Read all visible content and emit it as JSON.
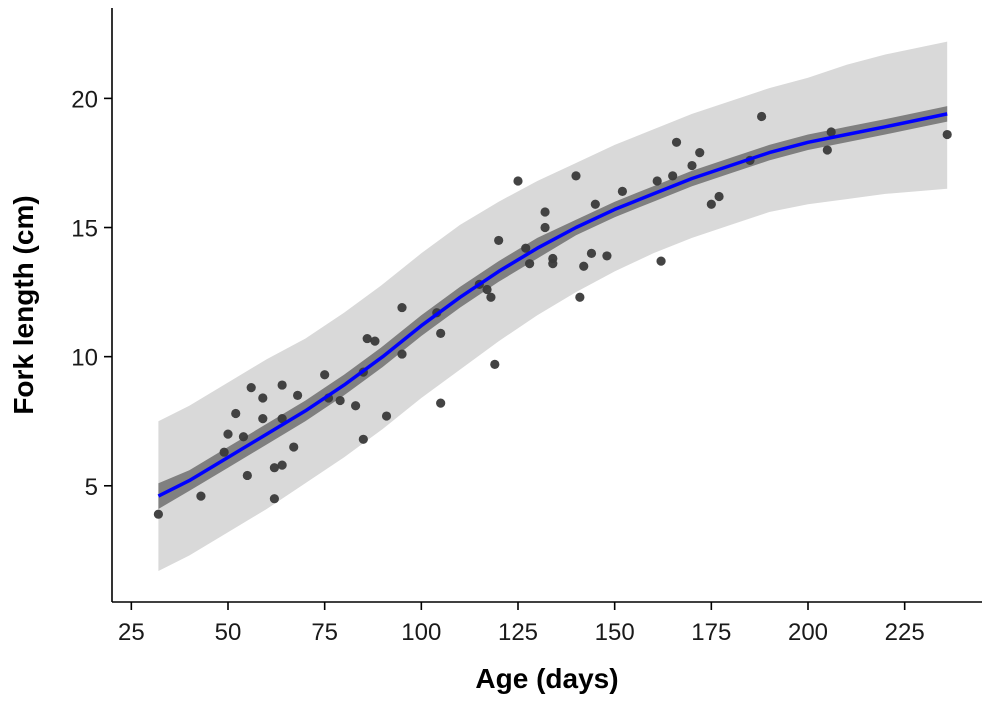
{
  "chart_data": {
    "type": "scatter",
    "title": "",
    "xlabel": "Age (days)",
    "ylabel": "Fork length (cm)",
    "xlim": [
      20,
      245
    ],
    "ylim": [
      0.5,
      23.5
    ],
    "x_ticks": [
      25,
      50,
      75,
      100,
      125,
      150,
      175,
      200,
      225
    ],
    "y_ticks": [
      5,
      10,
      15,
      20
    ],
    "grid": false,
    "legend": "none",
    "colors": {
      "points": "#3a3a3a",
      "fit_line": "#0000ff",
      "confidence_band": "#808080",
      "prediction_band": "#d9d9d9"
    },
    "points": [
      {
        "x": 32,
        "y": 3.9
      },
      {
        "x": 43,
        "y": 4.6
      },
      {
        "x": 49,
        "y": 6.3
      },
      {
        "x": 50,
        "y": 7.0
      },
      {
        "x": 52,
        "y": 7.8
      },
      {
        "x": 54,
        "y": 6.9
      },
      {
        "x": 55,
        "y": 5.4
      },
      {
        "x": 56,
        "y": 8.8
      },
      {
        "x": 59,
        "y": 8.4
      },
      {
        "x": 59,
        "y": 7.6
      },
      {
        "x": 62,
        "y": 5.7
      },
      {
        "x": 62,
        "y": 4.5
      },
      {
        "x": 64,
        "y": 8.9
      },
      {
        "x": 64,
        "y": 7.6
      },
      {
        "x": 64,
        "y": 5.8
      },
      {
        "x": 67,
        "y": 6.5
      },
      {
        "x": 68,
        "y": 8.5
      },
      {
        "x": 75,
        "y": 9.3
      },
      {
        "x": 76,
        "y": 8.4
      },
      {
        "x": 79,
        "y": 8.3
      },
      {
        "x": 83,
        "y": 8.1
      },
      {
        "x": 85,
        "y": 6.8
      },
      {
        "x": 85,
        "y": 9.4
      },
      {
        "x": 86,
        "y": 10.7
      },
      {
        "x": 88,
        "y": 10.6
      },
      {
        "x": 91,
        "y": 7.7
      },
      {
        "x": 95,
        "y": 11.9
      },
      {
        "x": 95,
        "y": 10.1
      },
      {
        "x": 104,
        "y": 11.7
      },
      {
        "x": 105,
        "y": 10.9
      },
      {
        "x": 105,
        "y": 8.2
      },
      {
        "x": 115,
        "y": 12.8
      },
      {
        "x": 117,
        "y": 12.6
      },
      {
        "x": 118,
        "y": 12.3
      },
      {
        "x": 119,
        "y": 9.7
      },
      {
        "x": 120,
        "y": 14.5
      },
      {
        "x": 125,
        "y": 16.8
      },
      {
        "x": 127,
        "y": 14.2
      },
      {
        "x": 128,
        "y": 13.6
      },
      {
        "x": 132,
        "y": 15.6
      },
      {
        "x": 132,
        "y": 15.0
      },
      {
        "x": 134,
        "y": 13.8
      },
      {
        "x": 134,
        "y": 13.6
      },
      {
        "x": 140,
        "y": 17.0
      },
      {
        "x": 141,
        "y": 12.3
      },
      {
        "x": 142,
        "y": 13.5
      },
      {
        "x": 144,
        "y": 14.0
      },
      {
        "x": 145,
        "y": 15.9
      },
      {
        "x": 148,
        "y": 13.9
      },
      {
        "x": 152,
        "y": 16.4
      },
      {
        "x": 161,
        "y": 16.8
      },
      {
        "x": 162,
        "y": 13.7
      },
      {
        "x": 165,
        "y": 17.0
      },
      {
        "x": 166,
        "y": 18.3
      },
      {
        "x": 170,
        "y": 17.4
      },
      {
        "x": 172,
        "y": 17.9
      },
      {
        "x": 175,
        "y": 15.9
      },
      {
        "x": 177,
        "y": 16.2
      },
      {
        "x": 185,
        "y": 17.6
      },
      {
        "x": 188,
        "y": 19.3
      },
      {
        "x": 205,
        "y": 18.0
      },
      {
        "x": 206,
        "y": 18.7
      },
      {
        "x": 236,
        "y": 18.6
      }
    ],
    "fit": {
      "x": [
        32,
        40,
        50,
        60,
        70,
        80,
        90,
        100,
        110,
        120,
        130,
        140,
        150,
        160,
        170,
        180,
        190,
        200,
        210,
        220,
        236
      ],
      "y": [
        4.6,
        5.2,
        6.1,
        7.0,
        7.9,
        8.9,
        10.0,
        11.2,
        12.3,
        13.3,
        14.2,
        15.0,
        15.7,
        16.3,
        16.9,
        17.4,
        17.9,
        18.3,
        18.6,
        18.9,
        19.4
      ],
      "ci_lo": [
        4.1,
        4.8,
        5.7,
        6.6,
        7.5,
        8.5,
        9.6,
        10.8,
        11.9,
        12.9,
        13.8,
        14.7,
        15.4,
        16.0,
        16.6,
        17.1,
        17.6,
        18.0,
        18.3,
        18.6,
        19.1
      ],
      "ci_hi": [
        5.1,
        5.6,
        6.5,
        7.4,
        8.3,
        9.3,
        10.4,
        11.6,
        12.7,
        13.7,
        14.6,
        15.3,
        16.0,
        16.6,
        17.2,
        17.7,
        18.2,
        18.6,
        18.9,
        19.2,
        19.7
      ],
      "pi_lo": [
        1.7,
        2.3,
        3.2,
        4.1,
        5.1,
        6.1,
        7.2,
        8.4,
        9.5,
        10.6,
        11.6,
        12.5,
        13.3,
        14.0,
        14.6,
        15.1,
        15.6,
        15.9,
        16.1,
        16.3,
        16.5
      ],
      "pi_hi": [
        7.5,
        8.1,
        9.0,
        9.9,
        10.7,
        11.7,
        12.8,
        14.0,
        15.1,
        16.0,
        16.8,
        17.5,
        18.2,
        18.8,
        19.4,
        19.9,
        20.4,
        20.8,
        21.3,
        21.7,
        22.2
      ]
    }
  }
}
